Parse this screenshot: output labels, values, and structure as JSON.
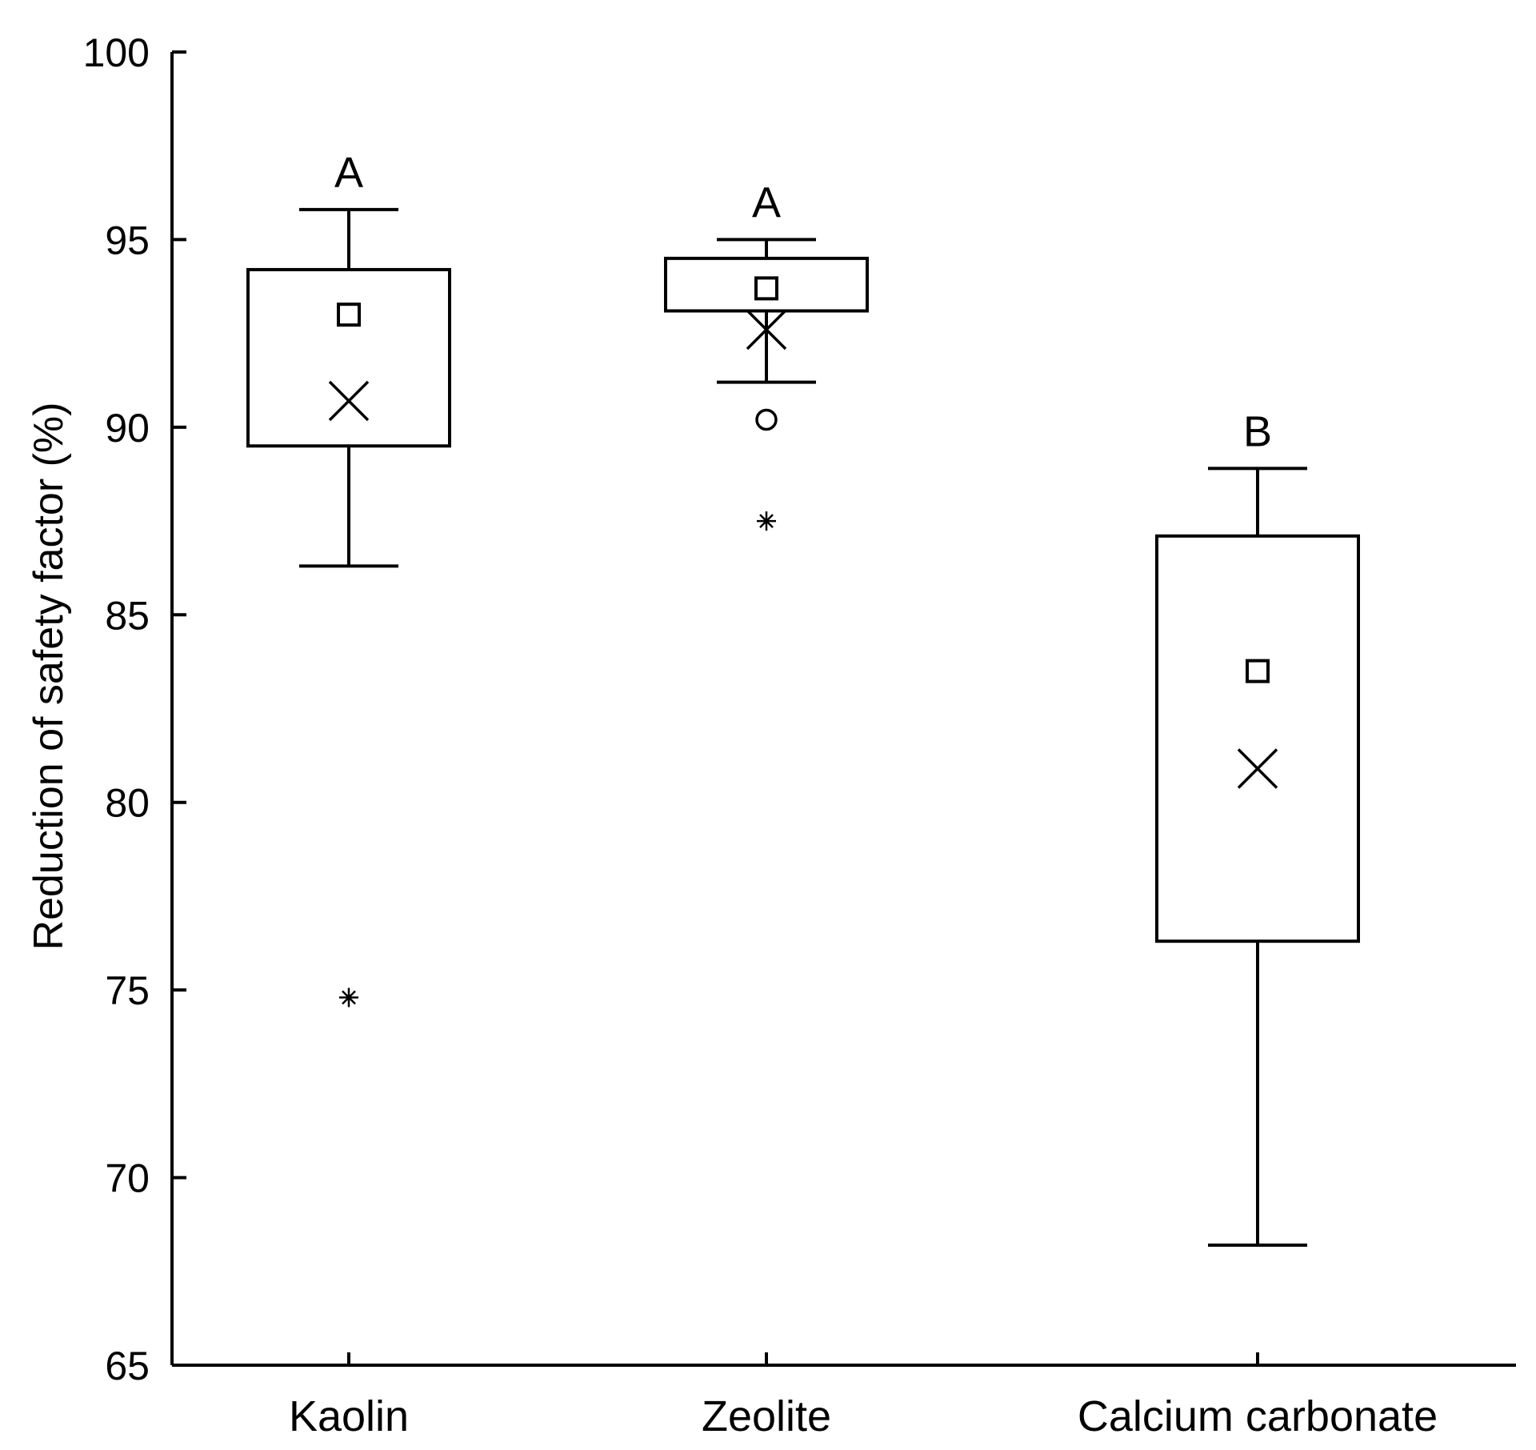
{
  "chart_data": {
    "type": "box",
    "title": "",
    "xlabel": "",
    "ylabel": "Reduction of safety factor (%)",
    "ylim": [
      65,
      100
    ],
    "yticks": [
      65,
      70,
      75,
      80,
      85,
      90,
      95,
      100
    ],
    "grid": false,
    "categories": [
      "Kaolin",
      "Zeolite",
      "Calcium carbonate"
    ],
    "boxes": [
      {
        "category": "Kaolin",
        "significance_letter": "A",
        "whisker_low": 86.3,
        "q1": 89.5,
        "median": 93.0,
        "q3": 94.2,
        "whisker_high": 95.8,
        "mean": 90.7,
        "outliers": [],
        "extremes": [
          74.8
        ]
      },
      {
        "category": "Zeolite",
        "significance_letter": "A",
        "whisker_low": 91.2,
        "q1": 93.1,
        "median": 93.7,
        "q3": 94.5,
        "whisker_high": 95.0,
        "mean": 92.6,
        "outliers": [
          90.2
        ],
        "extremes": [
          87.5
        ]
      },
      {
        "category": "Calcium carbonate",
        "significance_letter": "B",
        "whisker_low": 68.2,
        "q1": 76.3,
        "median": 83.5,
        "q3": 87.1,
        "whisker_high": 88.9,
        "mean": 80.9,
        "outliers": [],
        "extremes": []
      }
    ],
    "marker_legend": {
      "median": "square",
      "mean": "x-cross",
      "outlier": "circle",
      "extreme": "asterisk"
    },
    "colors": {
      "stroke": "#000000",
      "background": "#ffffff"
    }
  }
}
